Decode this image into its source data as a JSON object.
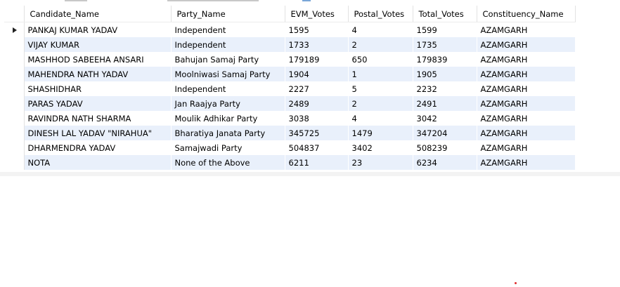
{
  "result_grid": {
    "columns": [
      "Candidate_Name",
      "Party_Name",
      "EVM_Votes",
      "Postal_Votes",
      "Total_Votes",
      "Constituency_Name"
    ],
    "current_row_index": 0,
    "rows": [
      [
        "PANKAJ KUMAR YADAV",
        "Independent",
        "1595",
        "4",
        "1599",
        "AZAMGARH"
      ],
      [
        "VIJAY KUMAR",
        "Independent",
        "1733",
        "2",
        "1735",
        "AZAMGARH"
      ],
      [
        "MASHHOD SABEEHA ANSARI",
        "Bahujan Samaj Party",
        "179189",
        "650",
        "179839",
        "AZAMGARH"
      ],
      [
        "MAHENDRA NATH YADAV",
        "Moolniwasi Samaj Party",
        "1904",
        "1",
        "1905",
        "AZAMGARH"
      ],
      [
        "SHASHIDHAR",
        "Independent",
        "2227",
        "5",
        "2232",
        "AZAMGARH"
      ],
      [
        "PARAS YADAV",
        "Jan Raajya Party",
        "2489",
        "2",
        "2491",
        "AZAMGARH"
      ],
      [
        "RAVINDRA NATH SHARMA",
        "Moulik Adhikar Party",
        "3038",
        "4",
        "3042",
        "AZAMGARH"
      ],
      [
        "DINESH LAL YADAV \"NIRAHUA\"",
        "Bharatiya Janata Party",
        "345725",
        "1479",
        "347204",
        "AZAMGARH"
      ],
      [
        "DHARMENDRA YADAV",
        "Samajwadi Party",
        "504837",
        "3402",
        "508239",
        "AZAMGARH"
      ],
      [
        "NOTA",
        "None of the Above",
        "6211",
        "23",
        "6234",
        "AZAMGARH"
      ]
    ]
  },
  "colors": {
    "alt_row": "#e9f0fb",
    "grid_line": "#e2e2e2"
  }
}
